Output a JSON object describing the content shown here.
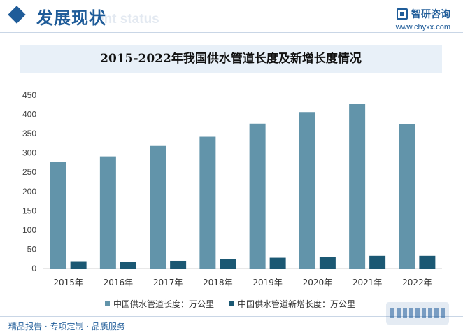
{
  "header": {
    "section_title": "发展现状",
    "section_watermark": "ent status",
    "logo_name": "智研咨询",
    "logo_url": "www.chyxx.com"
  },
  "footer": {
    "services": "精品报告 · 专项定制 · 品质服务"
  },
  "colors": {
    "brand": "#1f5c99",
    "series_length": "#6294aa",
    "series_new": "#1b5873",
    "title_band": "#e8f0f8"
  },
  "chart_data": {
    "type": "bar",
    "title": "2015-2022年我国供水管道长度及新增长度情况",
    "categories": [
      "2015年",
      "2016年",
      "2017年",
      "2018年",
      "2019年",
      "2020年",
      "2021年",
      "2022年"
    ],
    "series": [
      {
        "name": "中国供水管道长度：万公里",
        "values": [
          277,
          291,
          318,
          342,
          376,
          406,
          427,
          374
        ]
      },
      {
        "name": "中国供水管道新增长度：万公里",
        "values": [
          19,
          18,
          20,
          25,
          28,
          30,
          33,
          33
        ]
      }
    ],
    "ylim": [
      0,
      450
    ],
    "yticks": [
      0,
      50,
      100,
      150,
      200,
      250,
      300,
      350,
      400,
      450
    ],
    "xlabel": "",
    "ylabel": "",
    "grid": false,
    "legend": "bottom"
  }
}
